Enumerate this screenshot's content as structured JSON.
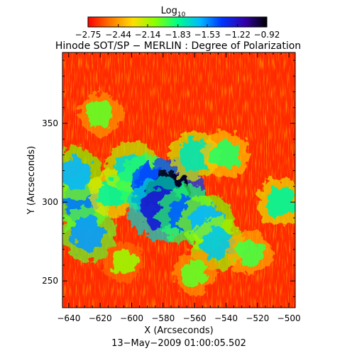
{
  "chart_data": {
    "type": "heatmap",
    "title": "Hinode SOT/SP − MERLIN : Degree of Polarization",
    "subtitle": "13−May−2009 01:00:05.502",
    "xlabel": "X (Arcseconds)",
    "ylabel": "Y (Arcseconds)",
    "xlim": [
      -644,
      -496
    ],
    "ylim": [
      233,
      395
    ],
    "x_ticks": [
      -640,
      -620,
      -600,
      -580,
      -560,
      -540,
      -520,
      -500
    ],
    "y_ticks": [
      250,
      300,
      350
    ],
    "x_tick_labels": [
      "−640",
      "−620",
      "−600",
      "−580",
      "−560",
      "−540",
      "−520",
      "−500"
    ],
    "y_tick_labels": [
      "250",
      "300",
      "350"
    ],
    "colorbar": {
      "label": "Log",
      "label_sub": "10",
      "range": [
        -2.75,
        -0.92
      ],
      "ticks": [
        -2.75,
        -2.44,
        -2.14,
        -1.83,
        -1.53,
        -1.22,
        -0.92
      ],
      "tick_labels": [
        "−2.75",
        "−2.44",
        "−2.14",
        "−1.83",
        "−1.53",
        "−1.22",
        "−0.92"
      ],
      "colormap": [
        "#ff0000",
        "#ff7700",
        "#ffdd00",
        "#88ff00",
        "#00ff88",
        "#00bbff",
        "#0033ff",
        "#3300aa",
        "#000000"
      ]
    },
    "features": [
      {
        "x": -632,
        "y": 300,
        "log_dop": -1.5
      },
      {
        "x": -628,
        "y": 280,
        "log_dop": -1.55
      },
      {
        "x": -636,
        "y": 318,
        "log_dop": -1.6
      },
      {
        "x": -612,
        "y": 306,
        "log_dop": -1.8
      },
      {
        "x": -600,
        "y": 322,
        "log_dop": -1.7
      },
      {
        "x": -590,
        "y": 312,
        "log_dop": -1.45
      },
      {
        "x": -576,
        "y": 305,
        "log_dop": -0.95
      },
      {
        "x": -582,
        "y": 296,
        "log_dop": -1.25
      },
      {
        "x": -565,
        "y": 292,
        "log_dop": -1.45
      },
      {
        "x": -552,
        "y": 288,
        "log_dop": -1.6
      },
      {
        "x": -545,
        "y": 274,
        "log_dop": -1.65
      },
      {
        "x": -560,
        "y": 330,
        "log_dop": -1.75
      },
      {
        "x": -620,
        "y": 356,
        "log_dop": -2.0
      },
      {
        "x": -540,
        "y": 330,
        "log_dop": -1.9
      },
      {
        "x": -505,
        "y": 300,
        "log_dop": -1.8
      },
      {
        "x": -525,
        "y": 268,
        "log_dop": -1.95
      },
      {
        "x": -605,
        "y": 262,
        "log_dop": -2.1
      },
      {
        "x": -560,
        "y": 255,
        "log_dop": -2.0
      }
    ]
  }
}
